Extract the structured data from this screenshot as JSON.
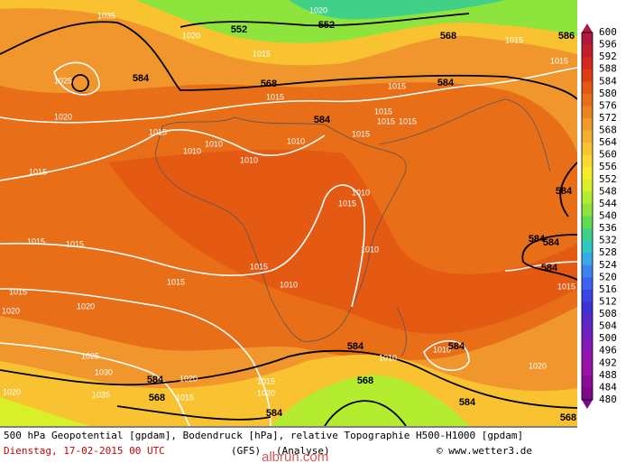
{
  "map": {
    "contour_labels": [
      "1035",
      "1020",
      "552",
      "552",
      "1020",
      "1015",
      "568",
      "1015",
      "1015",
      "586",
      "584",
      "1025",
      "568",
      "1015",
      "584",
      "1015",
      "1020",
      "584",
      "1015",
      "1015",
      "1015",
      "1015",
      "1010",
      "1010",
      "1010",
      "1010",
      "1015",
      "1015",
      "584",
      "1010",
      "1015",
      "1015",
      "1015",
      "1010",
      "584",
      "584",
      "584",
      "1015",
      "1010",
      "1015",
      "1015",
      "1020",
      "1015",
      "1020",
      "1025",
      "584",
      "1010",
      "584",
      "1010",
      "1030",
      "584",
      "1020",
      "568",
      "1020",
      "1015",
      "1020",
      "1020",
      "1035",
      "568",
      "1015",
      "584",
      "584",
      "568"
    ]
  },
  "colorbar": {
    "labels": [
      "600",
      "596",
      "592",
      "588",
      "584",
      "580",
      "576",
      "572",
      "568",
      "564",
      "560",
      "556",
      "552",
      "548",
      "544",
      "540",
      "536",
      "532",
      "528",
      "524",
      "520",
      "516",
      "512",
      "508",
      "504",
      "500",
      "496",
      "492",
      "488",
      "484",
      "480"
    ],
    "colors": [
      "#b0183c",
      "#c41e28",
      "#d6281e",
      "#e03c14",
      "#e55a12",
      "#e86e18",
      "#ec8420",
      "#f09a2a",
      "#f4ae30",
      "#f8c230",
      "#fad830",
      "#f8ec28",
      "#d8f028",
      "#b4ec30",
      "#8ce43c",
      "#60dc50",
      "#40d088",
      "#30c8c4",
      "#38a8e8",
      "#3c84f0",
      "#3c64f0",
      "#3c44e8",
      "#4030d8",
      "#5828c8",
      "#7020c0",
      "#8418b8",
      "#9414b0",
      "#9c10a8",
      "#8c0c98",
      "#7a0a88"
    ]
  },
  "footer": {
    "line1": "500 hPa Geopotential [gpdam], Bodendruck [hPa], relative Topographie H500-H1000 [gpdam]",
    "date": "Dienstag, 17-02-2015  00 UTC",
    "model": "(GFS)",
    "run": "(Analyse)",
    "credit": "© www.wetter3.de",
    "watermark": "albrun.com"
  }
}
